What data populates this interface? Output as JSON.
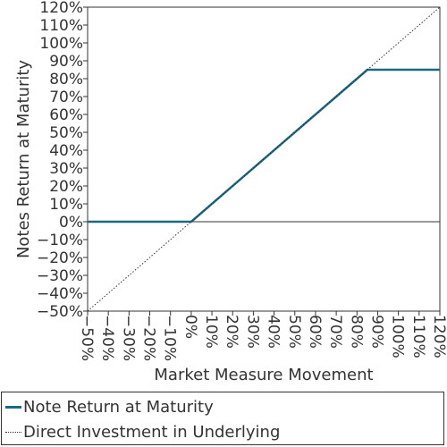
{
  "chart_data": {
    "type": "line",
    "xlabel": "Market Measure Movement",
    "ylabel": "Notes Return at Maturity",
    "xlim": [
      -50,
      120
    ],
    "ylim": [
      -50,
      120
    ],
    "x_ticks": [
      -50,
      -40,
      -30,
      -20,
      -10,
      0,
      10,
      20,
      30,
      40,
      50,
      60,
      70,
      80,
      90,
      100,
      110,
      120
    ],
    "y_ticks": [
      -50,
      -40,
      -30,
      -20,
      -10,
      0,
      10,
      20,
      30,
      40,
      50,
      60,
      70,
      80,
      90,
      100,
      110,
      120
    ],
    "x_tick_labels": [
      "−50%",
      "−40%",
      "−30%",
      "−20%",
      "−10%",
      "0%",
      "10%",
      "20%",
      "30%",
      "40%",
      "50%",
      "60%",
      "70%",
      "80%",
      "90%",
      "100%",
      "110%",
      "120%"
    ],
    "y_tick_labels": [
      "−50%",
      "−40%",
      "−30%",
      "−20%",
      "−10%",
      "0%",
      "10%",
      "20%",
      "30%",
      "40%",
      "50%",
      "60%",
      "70%",
      "80%",
      "90%",
      "100%",
      "110%",
      "120%"
    ],
    "grid": false,
    "legend_position": "bottom",
    "series": [
      {
        "name": "Note Return at Maturity",
        "style": "solid",
        "color": "#1a6a86",
        "x": [
          -50,
          0,
          85,
          120
        ],
        "y": [
          0,
          0,
          85,
          85
        ]
      },
      {
        "name": "Direct Investment in Underlying",
        "style": "dotted",
        "color": "#333333",
        "x": [
          -50,
          120
        ],
        "y": [
          -50,
          120
        ]
      }
    ]
  }
}
